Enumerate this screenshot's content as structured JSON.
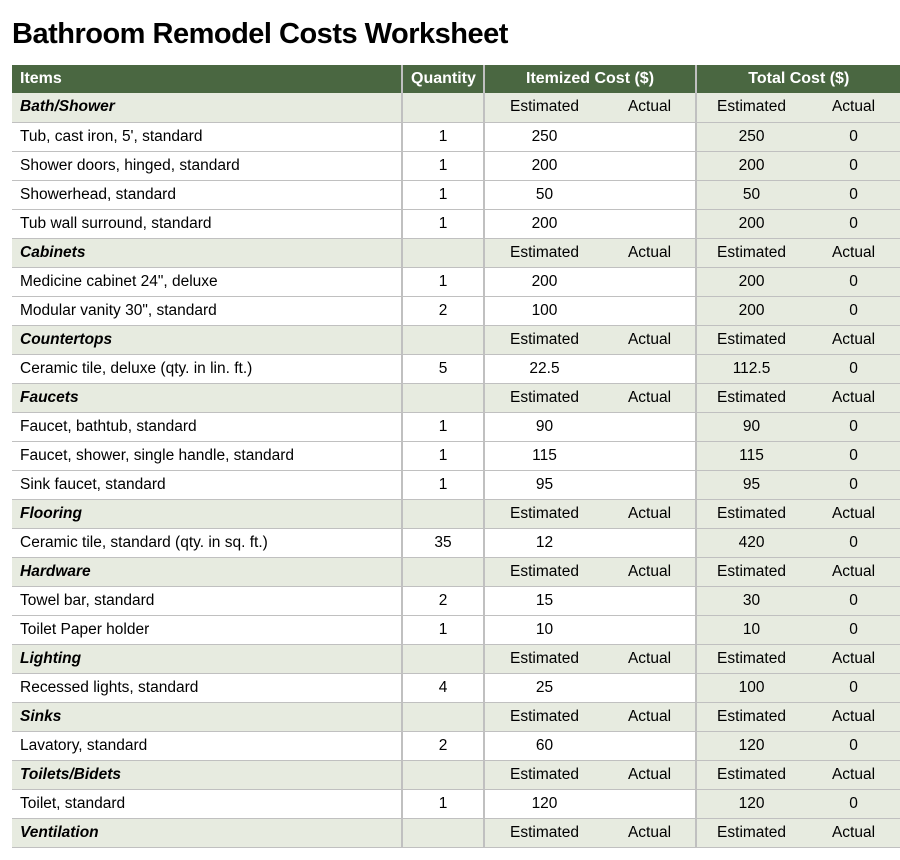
{
  "title": "Bathroom Remodel Costs Worksheet",
  "headers": {
    "items": "Items",
    "quantity": "Quantity",
    "itemized": "Itemized Cost ($)",
    "total": "Total Cost ($)",
    "estimated": "Estimated",
    "actual": "Actual"
  },
  "colors": {
    "header_bg": "#4a6741",
    "header_fg": "#ffffff",
    "section_bg": "#e7ebe0",
    "border": "#c0c0c0"
  },
  "sections": [
    {
      "name": "Bath/Shower",
      "items": [
        {
          "desc": "Tub, cast iron, 5', standard",
          "qty": "1",
          "est_cost": "250",
          "act_cost": "",
          "total_est": "250",
          "total_act": "0"
        },
        {
          "desc": "Shower doors, hinged, standard",
          "qty": "1",
          "est_cost": "200",
          "act_cost": "",
          "total_est": "200",
          "total_act": "0"
        },
        {
          "desc": "Showerhead, standard",
          "qty": "1",
          "est_cost": "50",
          "act_cost": "",
          "total_est": "50",
          "total_act": "0"
        },
        {
          "desc": "Tub wall surround, standard",
          "qty": "1",
          "est_cost": "200",
          "act_cost": "",
          "total_est": "200",
          "total_act": "0"
        }
      ]
    },
    {
      "name": "Cabinets",
      "items": [
        {
          "desc": "Medicine cabinet 24\", deluxe",
          "qty": "1",
          "est_cost": "200",
          "act_cost": "",
          "total_est": "200",
          "total_act": "0"
        },
        {
          "desc": "Modular vanity 30\", standard",
          "qty": "2",
          "est_cost": "100",
          "act_cost": "",
          "total_est": "200",
          "total_act": "0"
        }
      ]
    },
    {
      "name": "Countertops",
      "items": [
        {
          "desc": "Ceramic tile, deluxe (qty. in lin. ft.)",
          "qty": "5",
          "est_cost": "22.5",
          "act_cost": "",
          "total_est": "112.5",
          "total_act": "0"
        }
      ]
    },
    {
      "name": "Faucets",
      "items": [
        {
          "desc": "Faucet, bathtub, standard",
          "qty": "1",
          "est_cost": "90",
          "act_cost": "",
          "total_est": "90",
          "total_act": "0"
        },
        {
          "desc": "Faucet, shower, single handle, standard",
          "qty": "1",
          "est_cost": "115",
          "act_cost": "",
          "total_est": "115",
          "total_act": "0"
        },
        {
          "desc": "Sink faucet, standard",
          "qty": "1",
          "est_cost": "95",
          "act_cost": "",
          "total_est": "95",
          "total_act": "0"
        }
      ]
    },
    {
      "name": "Flooring",
      "items": [
        {
          "desc": "Ceramic tile, standard (qty. in sq. ft.)",
          "qty": "35",
          "est_cost": "12",
          "act_cost": "",
          "total_est": "420",
          "total_act": "0"
        }
      ]
    },
    {
      "name": "Hardware",
      "items": [
        {
          "desc": "Towel bar, standard",
          "qty": "2",
          "est_cost": "15",
          "act_cost": "",
          "total_est": "30",
          "total_act": "0"
        },
        {
          "desc": "Toilet Paper holder",
          "qty": "1",
          "est_cost": "10",
          "act_cost": "",
          "total_est": "10",
          "total_act": "0"
        }
      ]
    },
    {
      "name": "Lighting",
      "items": [
        {
          "desc": "Recessed lights, standard",
          "qty": "4",
          "est_cost": "25",
          "act_cost": "",
          "total_est": "100",
          "total_act": "0"
        }
      ]
    },
    {
      "name": "Sinks",
      "items": [
        {
          "desc": "Lavatory, standard",
          "qty": "2",
          "est_cost": "60",
          "act_cost": "",
          "total_est": "120",
          "total_act": "0"
        }
      ]
    },
    {
      "name": "Toilets/Bidets",
      "items": [
        {
          "desc": "Toilet, standard",
          "qty": "1",
          "est_cost": "120",
          "act_cost": "",
          "total_est": "120",
          "total_act": "0"
        }
      ]
    },
    {
      "name": "Ventilation",
      "items": []
    }
  ]
}
